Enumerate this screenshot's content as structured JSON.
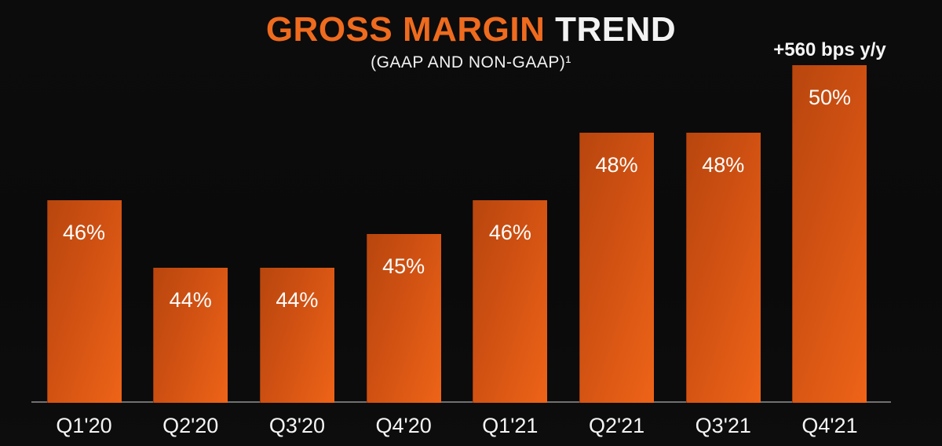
{
  "header": {
    "title_primary": "GROSS MARGIN",
    "title_secondary": "TREND",
    "subtitle": "(GAAP AND NON-GAAP)¹"
  },
  "annotation": {
    "text": "+560 bps y/y",
    "target_category": "Q4'21"
  },
  "colors": {
    "accent_orange": "#EF6B1E",
    "bar_gradient_dark": "#B8460E",
    "bar_gradient_bright": "#EE6418",
    "background": "#0B0B0B",
    "axis_line": "#707070",
    "text": "#F2F2F2"
  },
  "chart_data": {
    "type": "bar",
    "title": "GROSS MARGIN TREND",
    "subtitle": "(GAAP AND NON-GAAP)¹",
    "categories": [
      "Q1'20",
      "Q2'20",
      "Q3'20",
      "Q4'20",
      "Q1'21",
      "Q2'21",
      "Q3'21",
      "Q4'21"
    ],
    "values": [
      46,
      44,
      44,
      45,
      46,
      48,
      48,
      50
    ],
    "value_labels": [
      "46%",
      "44%",
      "44%",
      "45%",
      "46%",
      "48%",
      "48%",
      "50%"
    ],
    "unit": "%",
    "xlabel": "",
    "ylabel": "Gross margin",
    "ylim": [
      40,
      52
    ],
    "baseline_value": 40,
    "grid": false,
    "legend": "none",
    "annotations": [
      "+560 bps y/y above Q4'21 bar"
    ]
  }
}
